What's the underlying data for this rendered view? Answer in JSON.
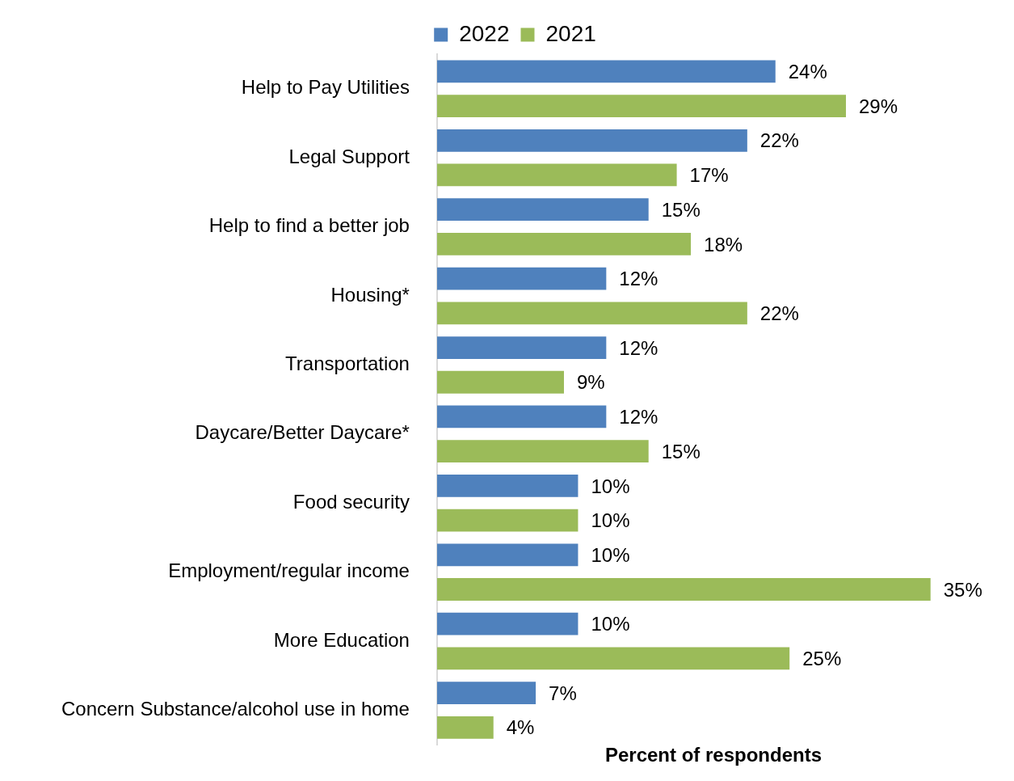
{
  "chart_data": {
    "type": "bar",
    "orientation": "horizontal",
    "xlabel": "Percent of respondents",
    "legend": "top",
    "grid": false,
    "categories": [
      "Help to Pay Utilities",
      "Legal Support",
      "Help to find a better job",
      "Housing*",
      "Transportation",
      "Daycare/Better Daycare*",
      "Food security",
      "Employment/regular income",
      "More Education",
      "Concern Substance/alcohol use in home"
    ],
    "series": [
      {
        "name": "2022",
        "color": "#4f81bd",
        "values": [
          24,
          22,
          15,
          12,
          12,
          12,
          10,
          10,
          10,
          7
        ],
        "value_labels": [
          "24%",
          "22%",
          "15%",
          "12%",
          "12%",
          "12%",
          "10%",
          "10%",
          "10%",
          "7%"
        ]
      },
      {
        "name": "2021",
        "color": "#9bbb59",
        "values": [
          29,
          17,
          18,
          22,
          9,
          15,
          10,
          35,
          25,
          4
        ],
        "value_labels": [
          "29%",
          "17%",
          "18%",
          "22%",
          "9%",
          "15%",
          "10%",
          "35%",
          "25%",
          "4%"
        ]
      }
    ]
  }
}
